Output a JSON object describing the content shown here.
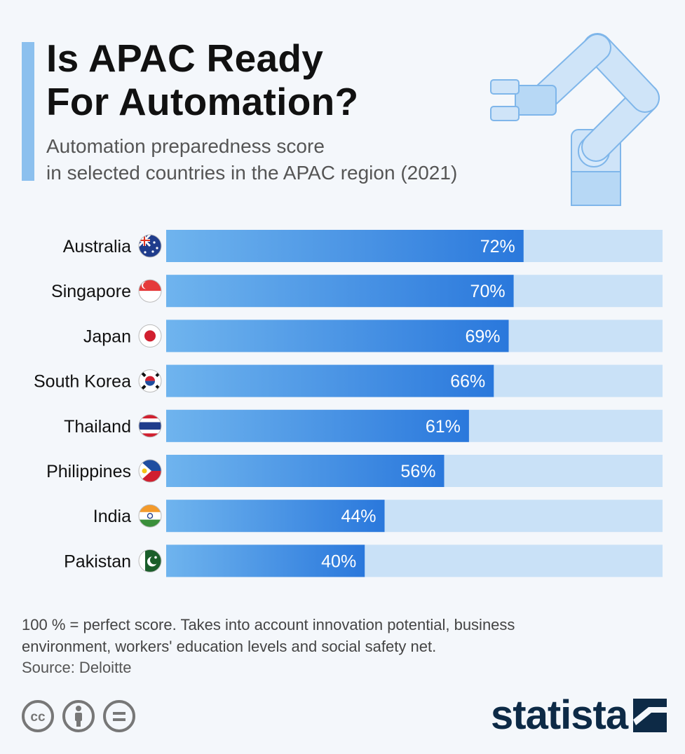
{
  "header": {
    "title_line1": "Is APAC Ready",
    "title_line2": "For Automation?",
    "subtitle_line1": "Automation preparedness score",
    "subtitle_line2": "in selected countries in the APAC region (2021)"
  },
  "footer": {
    "note_line1": "100 % = perfect score. Takes into account innovation potential, business",
    "note_line2": "environment, workers' education levels and social safety net.",
    "source": "Source: Deloitte",
    "brand": "statista"
  },
  "colors": {
    "bar_start": "#6fb4ee",
    "bar_end": "#2a78dc",
    "track": "#c9e1f7",
    "accent": "#8cc0ee",
    "brand": "#0d2a46"
  },
  "icons": [
    "robot-arm-icon",
    "creative-commons-icon",
    "attribution-icon",
    "no-derivatives-icon",
    "statista-logo-icon"
  ],
  "chart_data": {
    "type": "bar",
    "orientation": "horizontal",
    "title": "Is APAC Ready For Automation?",
    "subtitle": "Automation preparedness score in selected countries in the APAC region (2021)",
    "categories": [
      "Australia",
      "Singapore",
      "Japan",
      "South Korea",
      "Thailand",
      "Philippines",
      "India",
      "Pakistan"
    ],
    "values": [
      72,
      70,
      69,
      66,
      61,
      56,
      44,
      40
    ],
    "value_labels": [
      "72%",
      "70%",
      "69%",
      "66%",
      "61%",
      "56%",
      "44%",
      "40%"
    ],
    "flags": [
      "flag-australia-icon",
      "flag-singapore-icon",
      "flag-japan-icon",
      "flag-south-korea-icon",
      "flag-thailand-icon",
      "flag-philippines-icon",
      "flag-india-icon",
      "flag-pakistan-icon"
    ],
    "xlim": [
      0,
      100
    ],
    "unit": "%",
    "grid": false,
    "legend": "none"
  }
}
